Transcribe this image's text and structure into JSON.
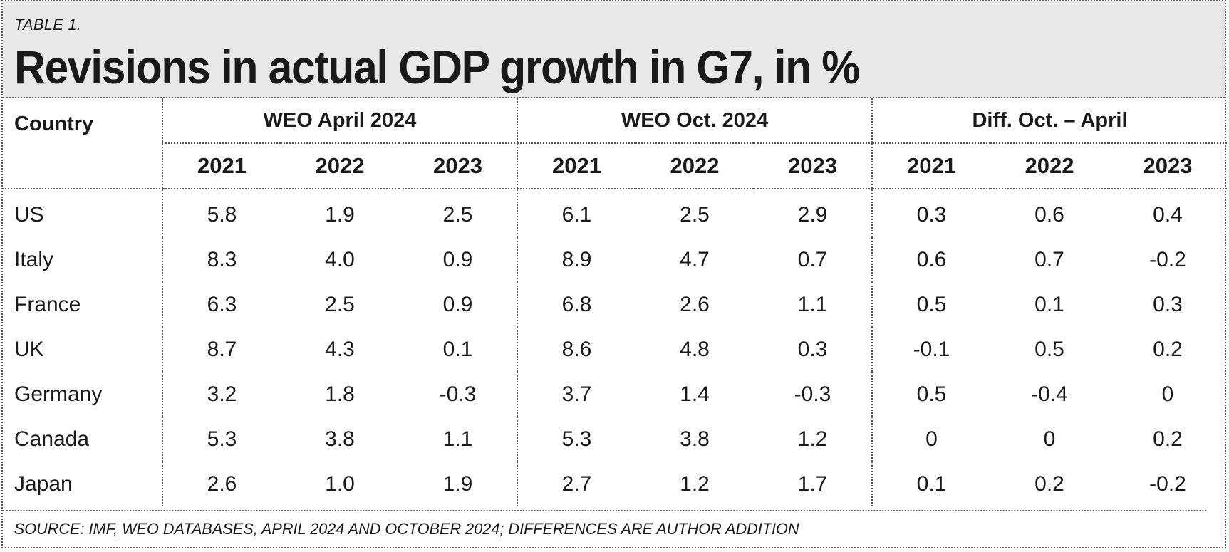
{
  "header": {
    "tag": "TABLE 1.",
    "title": "Revisions in actual GDP growth in G7, in %"
  },
  "table": {
    "country_header": "Country",
    "groups": [
      "WEO April 2024",
      "WEO Oct. 2024",
      "Diff. Oct. – April"
    ],
    "years": [
      "2021",
      "2022",
      "2023"
    ],
    "rows": [
      {
        "country": "US",
        "values": [
          "5.8",
          "1.9",
          "2.5",
          "6.1",
          "2.5",
          "2.9",
          "0.3",
          "0.6",
          "0.4"
        ]
      },
      {
        "country": "Italy",
        "values": [
          "8.3",
          "4.0",
          "0.9",
          "8.9",
          "4.7",
          "0.7",
          "0.6",
          "0.7",
          "-0.2"
        ]
      },
      {
        "country": "France",
        "values": [
          "6.3",
          "2.5",
          "0.9",
          "6.8",
          "2.6",
          "1.1",
          "0.5",
          "0.1",
          "0.3"
        ]
      },
      {
        "country": "UK",
        "values": [
          "8.7",
          "4.3",
          "0.1",
          "8.6",
          "4.8",
          "0.3",
          "-0.1",
          "0.5",
          "0.2"
        ]
      },
      {
        "country": "Germany",
        "values": [
          "3.2",
          "1.8",
          "-0.3",
          "3.7",
          "1.4",
          "-0.3",
          "0.5",
          "-0.4",
          "0"
        ]
      },
      {
        "country": "Canada",
        "values": [
          "5.3",
          "3.8",
          "1.1",
          "5.3",
          "3.8",
          "1.2",
          "0",
          "0",
          "0.2"
        ]
      },
      {
        "country": "Japan",
        "values": [
          "2.6",
          "1.0",
          "1.9",
          "2.7",
          "1.2",
          "1.7",
          "0.1",
          "0.2",
          "-0.2"
        ]
      }
    ]
  },
  "footer": {
    "source": "SOURCE: IMF, WEO DATABASES, APRIL 2024 AND OCTOBER 2024; DIFFERENCES ARE AUTHOR ADDITION"
  }
}
